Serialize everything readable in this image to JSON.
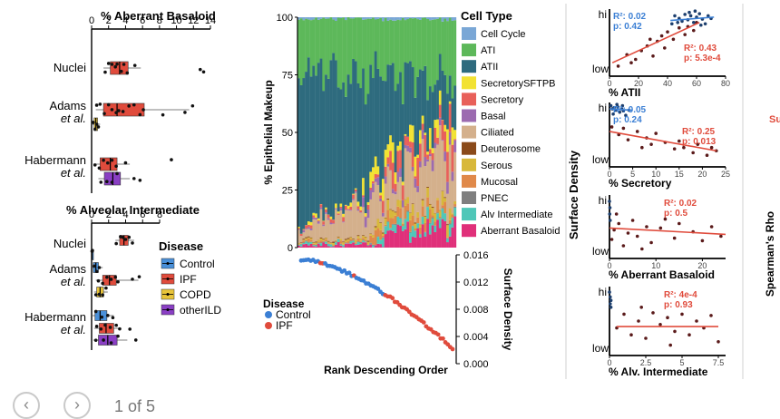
{
  "chart_data": [
    {
      "type": "boxplot",
      "id": "aberrant",
      "title": "% Aberrant Basaloid",
      "xlim": [
        0,
        14
      ],
      "xticks": [
        0,
        2,
        4,
        6,
        8,
        10,
        12,
        14
      ],
      "groups": [
        {
          "label": "Nuclei",
          "boxes": [
            {
              "disease": "IPF",
              "q1": 2.2,
              "median": 3.3,
              "q3": 4.3,
              "wmin": 1.4,
              "wmax": 5.8,
              "points": [
                1.6,
                2.0,
                2.4,
                2.8,
                3.0,
                3.5,
                3.8,
                4.2,
                5.1,
                12.8,
                13.2
              ]
            }
          ]
        },
        {
          "label": "Adams",
          "label2": "et al.",
          "boxes": [
            {
              "disease": "IPF",
              "q1": 1.4,
              "median": 3.0,
              "q3": 6.2,
              "wmin": 0.5,
              "wmax": 11.5,
              "points": [
                0.6,
                1.0,
                1.5,
                2.0,
                2.4,
                2.9,
                3.2,
                3.7,
                4.4,
                5.0,
                5.7,
                6.1,
                8.4,
                11.0,
                11.9
              ]
            },
            {
              "disease": "COPD",
              "q1": 0.3,
              "median": 0.5,
              "q3": 0.7,
              "wmin": 0.1,
              "wmax": 1.0,
              "points": [
                0.2,
                0.4,
                0.6,
                0.8
              ]
            }
          ]
        },
        {
          "label": "Habermann",
          "label2": "et al.",
          "boxes": [
            {
              "disease": "IPF",
              "q1": 1.0,
              "median": 2.2,
              "q3": 3.0,
              "wmin": 0.2,
              "wmax": 4.5,
              "points": [
                0.4,
                0.9,
                1.4,
                1.9,
                2.4,
                2.9,
                4.0,
                9.4
              ]
            },
            {
              "disease": "otherILD",
              "q1": 1.5,
              "median": 2.5,
              "q3": 3.4,
              "wmin": 0.8,
              "wmax": 4.5,
              "points": [
                1.1,
                1.8,
                2.4,
                3.0,
                5.0,
                5.7
              ]
            }
          ]
        }
      ]
    },
    {
      "type": "boxplot",
      "id": "alveolar",
      "title": "% Alveolar Intermediate",
      "xlim": [
        0,
        8
      ],
      "xticks": [
        0,
        2,
        4,
        6,
        8
      ],
      "groups": [
        {
          "label": "Nuclei",
          "boxes": [
            {
              "disease": "IPF",
              "q1": 3.3,
              "median": 3.8,
              "q3": 4.3,
              "wmin": 2.8,
              "wmax": 5.0,
              "points": [
                2.9,
                3.4,
                3.7,
                4.0,
                4.4,
                4.8
              ]
            },
            {
              "disease": "Control",
              "q1": 0.0,
              "median": 0.05,
              "q3": 0.1,
              "wmin": 0.0,
              "wmax": 0.2,
              "points": [
                0.05,
                0.1
              ]
            }
          ]
        },
        {
          "label": "Adams",
          "label2": "et al.",
          "boxes": [
            {
              "disease": "Control",
              "q1": 0.2,
              "median": 0.5,
              "q3": 0.8,
              "wmin": 0.0,
              "wmax": 1.3,
              "points": [
                0.3,
                0.6,
                0.9
              ]
            },
            {
              "disease": "IPF",
              "q1": 1.3,
              "median": 2.1,
              "q3": 2.9,
              "wmin": 0.5,
              "wmax": 5.5,
              "points": [
                0.8,
                1.3,
                1.8,
                2.3,
                2.8,
                3.1,
                4.8,
                5.6
              ]
            },
            {
              "disease": "COPD",
              "q1": 0.6,
              "median": 1.0,
              "q3": 1.4,
              "wmin": 0.3,
              "wmax": 1.9,
              "points": [
                0.5,
                0.9,
                1.3,
                1.7
              ]
            }
          ]
        },
        {
          "label": "Habermann",
          "label2": "et al.",
          "boxes": [
            {
              "disease": "Control",
              "q1": 0.4,
              "median": 1.0,
              "q3": 1.8,
              "wmin": 0.1,
              "wmax": 2.6,
              "points": [
                0.5,
                1.2,
                1.9,
                2.5
              ]
            },
            {
              "disease": "IPF",
              "q1": 0.9,
              "median": 1.7,
              "q3": 2.6,
              "wmin": 0.3,
              "wmax": 3.5,
              "points": [
                0.6,
                1.1,
                1.6,
                2.2,
                2.9,
                3.3,
                4.5
              ]
            },
            {
              "disease": "otherILD",
              "q1": 0.8,
              "median": 1.9,
              "q3": 3.0,
              "wmin": 0.2,
              "wmax": 4.2,
              "points": [
                0.5,
                1.4,
                2.3,
                3.1,
                5.2
              ]
            }
          ]
        }
      ]
    },
    {
      "type": "stacked_bar",
      "id": "makeup",
      "ylabel": "% Epithelial Makeup",
      "ylim": [
        0,
        100
      ],
      "yticks": [
        0,
        25,
        50,
        75,
        100
      ],
      "n_bars": 64,
      "legend_title": "Cell Type",
      "cell_types": [
        "Cell Cycle",
        "ATI",
        "ATII",
        "SecretorySFTPB",
        "Secretory",
        "Basal",
        "Ciliated",
        "Deuterosome",
        "Serous",
        "Mucosal",
        "PNEC",
        "Alv Intermediate",
        "Aberrant Basaloid"
      ],
      "stack_order": [
        "Aberrant Basaloid",
        "Alv Intermediate",
        "PNEC",
        "Mucosal",
        "Serous",
        "Deuterosome",
        "Ciliated",
        "Basal",
        "Secretory",
        "SecretorySFTPB",
        "ATII",
        "ATI",
        "Cell Cycle"
      ]
    },
    {
      "type": "scatter",
      "id": "density_rank",
      "xlabel": "Rank Descending Order",
      "ylabel": "Surface Density",
      "ylim": [
        0,
        0.016
      ],
      "yticks": [
        "0.000",
        "0.004",
        "0.008",
        "0.012",
        "0.016"
      ],
      "n_points": 64,
      "ymax": 0.0153,
      "ymin": 0.0022,
      "legend_title": "Disease",
      "legend": [
        "Control",
        "IPF"
      ]
    },
    {
      "type": "scatter",
      "id": "atii",
      "xlabel": "% ATII",
      "xlim": [
        0,
        80
      ],
      "xticks": [
        0,
        20,
        40,
        60,
        80
      ],
      "ylabel_hi": "hi",
      "ylabel_lo": "low",
      "blue_stats": {
        "r2": "R²: 0.02",
        "p": "p: 0.42"
      },
      "red_stats": {
        "r2": "R²: 0.43",
        "p": "p: 5.3e-4"
      },
      "control_points": [
        [
          43,
          0.78
        ],
        [
          45,
          0.9
        ],
        [
          48,
          0.86
        ],
        [
          50,
          0.82
        ],
        [
          52,
          0.92
        ],
        [
          54,
          0.84
        ],
        [
          56,
          0.9
        ],
        [
          58,
          0.8
        ],
        [
          60,
          0.88
        ],
        [
          62,
          0.93
        ],
        [
          64,
          0.85
        ],
        [
          66,
          0.78
        ],
        [
          68,
          0.9
        ],
        [
          70,
          0.86
        ],
        [
          55,
          0.95
        ],
        [
          47,
          0.8
        ],
        [
          59,
          0.97
        ],
        [
          63,
          0.76
        ]
      ],
      "ipf_points": [
        [
          6,
          0.15
        ],
        [
          12,
          0.32
        ],
        [
          18,
          0.25
        ],
        [
          22,
          0.38
        ],
        [
          26,
          0.45
        ],
        [
          30,
          0.3
        ],
        [
          33,
          0.52
        ],
        [
          36,
          0.6
        ],
        [
          38,
          0.42
        ],
        [
          40,
          0.66
        ],
        [
          44,
          0.55
        ],
        [
          48,
          0.72
        ],
        [
          52,
          0.62
        ],
        [
          54,
          0.74
        ],
        [
          58,
          0.68
        ],
        [
          60,
          0.8
        ],
        [
          28,
          0.55
        ],
        [
          15,
          0.2
        ]
      ],
      "control_fit": [
        [
          42,
          0.83
        ],
        [
          72,
          0.88
        ]
      ],
      "ipf_fit": [
        [
          2,
          0.2
        ],
        [
          62,
          0.8
        ]
      ]
    },
    {
      "type": "scatter",
      "id": "secretory",
      "xlabel": "% Secretory",
      "xlim": [
        0,
        25
      ],
      "xticks": [
        0,
        5,
        10,
        15,
        20,
        25
      ],
      "ylabel_hi": "hi",
      "ylabel_lo": "low",
      "blue_stats": {
        "r2": "R²: 0.05",
        "p": "p: 0.24"
      },
      "red_stats": {
        "r2": "R²: 0.25",
        "p": "p: 0.013"
      },
      "control_points": [
        [
          0.3,
          0.95
        ],
        [
          0.6,
          0.9
        ],
        [
          1.0,
          0.92
        ],
        [
          1.4,
          0.88
        ],
        [
          1.8,
          0.93
        ],
        [
          2.2,
          0.85
        ],
        [
          2.6,
          0.9
        ],
        [
          3.0,
          0.87
        ],
        [
          3.5,
          0.8
        ],
        [
          0.8,
          0.82
        ],
        [
          1.6,
          0.97
        ],
        [
          2.8,
          0.95
        ],
        [
          4.2,
          0.88
        ]
      ],
      "ipf_points": [
        [
          0.5,
          0.62
        ],
        [
          2,
          0.5
        ],
        [
          4,
          0.42
        ],
        [
          6,
          0.55
        ],
        [
          8,
          0.45
        ],
        [
          9,
          0.35
        ],
        [
          10,
          0.52
        ],
        [
          12,
          0.38
        ],
        [
          14,
          0.28
        ],
        [
          15,
          0.4
        ],
        [
          16,
          0.3
        ],
        [
          18,
          0.22
        ],
        [
          19,
          0.35
        ],
        [
          21,
          0.18
        ],
        [
          22,
          0.3
        ],
        [
          23,
          0.25
        ],
        [
          3,
          0.6
        ],
        [
          7,
          0.3
        ]
      ],
      "control_fit": [
        [
          0,
          0.9
        ],
        [
          5,
          0.88
        ]
      ],
      "ipf_fit": [
        [
          0,
          0.55
        ],
        [
          23,
          0.25
        ]
      ]
    },
    {
      "type": "scatter",
      "id": "aberrant_scatter",
      "xlabel": "% Aberrant Basaloid",
      "xlim": [
        0,
        25
      ],
      "xticks": [
        0,
        10,
        20
      ],
      "ylabel_hi": "hi",
      "ylabel_lo": "low",
      "blue_stats": null,
      "red_stats": {
        "r2": "R²: 0.02",
        "p": "p: 0.5"
      },
      "control_points": [
        [
          0,
          0.9
        ],
        [
          0.1,
          0.8
        ],
        [
          0.05,
          0.7
        ],
        [
          0.15,
          0.6
        ]
      ],
      "ipf_points": [
        [
          0.5,
          0.3
        ],
        [
          1,
          0.45
        ],
        [
          2,
          0.55
        ],
        [
          3,
          0.2
        ],
        [
          4,
          0.4
        ],
        [
          5,
          0.6
        ],
        [
          6,
          0.35
        ],
        [
          8,
          0.5
        ],
        [
          9,
          0.25
        ],
        [
          11,
          0.48
        ],
        [
          12,
          0.62
        ],
        [
          14,
          0.32
        ],
        [
          15,
          0.55
        ],
        [
          18,
          0.42
        ],
        [
          20,
          0.28
        ],
        [
          22,
          0.5
        ],
        [
          24,
          0.35
        ],
        [
          1.5,
          0.7
        ],
        [
          7,
          0.15
        ]
      ],
      "control_fit": null,
      "ipf_fit": [
        [
          0,
          0.48
        ],
        [
          25,
          0.38
        ]
      ]
    },
    {
      "type": "scatter",
      "id": "alveolar_scatter",
      "xlabel": "% Alv. Intermediate",
      "xlim": [
        0,
        8
      ],
      "xticks": [
        "0",
        "2.5",
        "5",
        "7.5"
      ],
      "ylabel_hi": "hi",
      "ylabel_lo": "low",
      "blue_stats": null,
      "red_stats": {
        "r2": "R²: 4e-4",
        "p": "p: 0.93"
      },
      "control_points": [
        [
          0,
          0.92
        ],
        [
          0.05,
          0.85
        ],
        [
          0.1,
          0.8
        ],
        [
          0.05,
          0.75
        ],
        [
          0.1,
          0.7
        ]
      ],
      "ipf_points": [
        [
          0.5,
          0.4
        ],
        [
          1,
          0.6
        ],
        [
          1.5,
          0.3
        ],
        [
          2,
          0.5
        ],
        [
          2.5,
          0.25
        ],
        [
          3,
          0.62
        ],
        [
          3.5,
          0.45
        ],
        [
          4,
          0.55
        ],
        [
          4.5,
          0.35
        ],
        [
          5,
          0.6
        ],
        [
          5.5,
          0.3
        ],
        [
          6,
          0.5
        ],
        [
          6.5,
          0.4
        ],
        [
          7,
          0.58
        ],
        [
          7.5,
          0.2
        ],
        [
          2.2,
          0.7
        ],
        [
          4.2,
          0.15
        ]
      ],
      "control_fit": null,
      "ipf_fit": [
        [
          0.5,
          0.42
        ],
        [
          7.5,
          0.42
        ]
      ]
    }
  ],
  "shared": {
    "surface_density_label": "Surface Density",
    "spearman_label": "Spearman's Rho",
    "cropped_label": "Su"
  },
  "disease_legend": {
    "title": "Disease",
    "items": [
      "Control",
      "IPF",
      "COPD",
      "otherILD"
    ]
  },
  "colors": {
    "Control": "#4a90d9",
    "IPF": "#e04b3c",
    "COPD": "#e8c43a",
    "otherILD": "#8a3fc4",
    "ctrl_pt": "#3b7fd4",
    "ipf_pt": "#c0392b",
    "dark_pt": "#5a1a1a",
    "Cell Cycle": "#7aa7d6",
    "ATI": "#5db85a",
    "ATII": "#2e6b7e",
    "SecretorySFTPB": "#f2e232",
    "Secretory": "#e8605a",
    "Basal": "#9c6bb0",
    "Ciliated": "#d4b08c",
    "Deuterosome": "#8a4a1a",
    "Serous": "#d8b83a",
    "Mucosal": "#e0894a",
    "PNEC": "#7f7f7f",
    "Alv Intermediate": "#4fc7b8",
    "Aberrant Basaloid": "#e0307a"
  },
  "pager": {
    "text": "1 of 5",
    "prev_icon": "chevron-left-icon",
    "next_icon": "chevron-right-icon"
  }
}
